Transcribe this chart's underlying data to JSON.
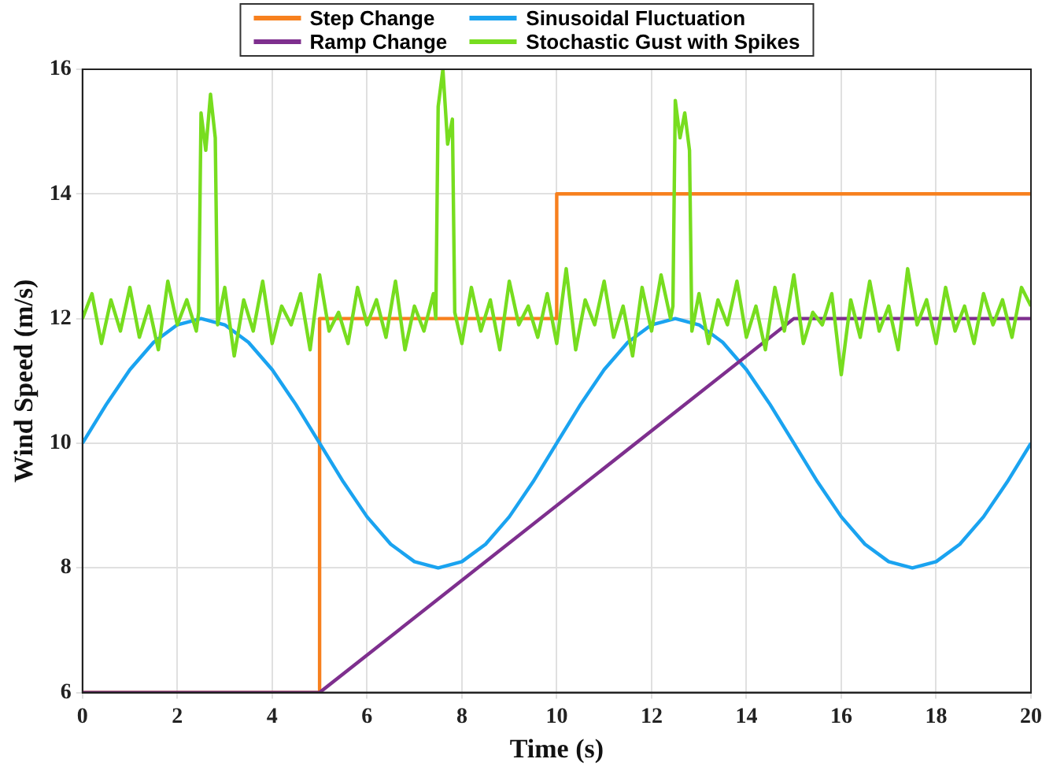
{
  "chart_data": {
    "type": "line",
    "xlabel": "Time (s)",
    "ylabel": "Wind Speed (m/s)",
    "xlim": [
      0,
      20
    ],
    "xticks": [
      0,
      2,
      4,
      6,
      8,
      10,
      12,
      14,
      16,
      18,
      20
    ],
    "ylim": [
      6,
      16
    ],
    "yticks": [
      6,
      8,
      10,
      12,
      14,
      16
    ],
    "grid": true,
    "legend": "top",
    "marker": "none",
    "line_style": "solid",
    "series": [
      {
        "name": "Step Change",
        "color": "#f7801e",
        "x": [
          0,
          5,
          5,
          10,
          10,
          20
        ],
        "values": [
          6,
          6,
          12,
          12,
          14,
          14
        ]
      },
      {
        "name": "Sinusoidal Fluctuation",
        "color": "#1aa3f0",
        "x": [
          0,
          0.5,
          1,
          1.5,
          2,
          2.5,
          3,
          3.5,
          4,
          4.5,
          5,
          5.5,
          6,
          6.5,
          7,
          7.5,
          8,
          8.5,
          9,
          9.5,
          10,
          10.5,
          11,
          11.5,
          12,
          12.5,
          13,
          13.5,
          14,
          14.5,
          15,
          15.5,
          16,
          16.5,
          17,
          17.5,
          18,
          18.5,
          19,
          19.5,
          20
        ],
        "values": [
          10,
          10.62,
          11.18,
          11.62,
          11.9,
          12,
          11.9,
          11.62,
          11.18,
          10.62,
          10,
          9.38,
          8.82,
          8.38,
          8.1,
          8,
          8.1,
          8.38,
          8.82,
          9.38,
          10,
          10.62,
          11.18,
          11.62,
          11.9,
          12,
          11.9,
          11.62,
          11.18,
          10.62,
          10,
          9.38,
          8.82,
          8.38,
          8.1,
          8,
          8.1,
          8.38,
          8.82,
          9.38,
          10
        ]
      },
      {
        "name": "Ramp Change",
        "color": "#7e2f8e",
        "x": [
          0,
          5,
          15,
          20
        ],
        "values": [
          6,
          6,
          12,
          12
        ]
      },
      {
        "name": "Stochastic Gust with Spikes",
        "color": "#77dd1f",
        "x": [
          0,
          0.2,
          0.4,
          0.6,
          0.8,
          1,
          1.2,
          1.4,
          1.6,
          1.8,
          2,
          2.2,
          2.4,
          2.45,
          2.5,
          2.6,
          2.7,
          2.8,
          2.85,
          3,
          3.2,
          3.4,
          3.6,
          3.8,
          4,
          4.2,
          4.4,
          4.6,
          4.8,
          5,
          5.2,
          5.4,
          5.6,
          5.8,
          6,
          6.2,
          6.4,
          6.6,
          6.8,
          7,
          7.2,
          7.4,
          7.45,
          7.5,
          7.6,
          7.7,
          7.8,
          7.85,
          8,
          8.2,
          8.4,
          8.6,
          8.8,
          9,
          9.2,
          9.4,
          9.6,
          9.8,
          10,
          10.2,
          10.4,
          10.6,
          10.8,
          11,
          11.2,
          11.4,
          11.6,
          11.8,
          12,
          12.2,
          12.4,
          12.45,
          12.5,
          12.6,
          12.7,
          12.8,
          12.85,
          13,
          13.2,
          13.4,
          13.6,
          13.8,
          14,
          14.2,
          14.4,
          14.6,
          14.8,
          15,
          15.2,
          15.4,
          15.6,
          15.8,
          16,
          16.2,
          16.4,
          16.6,
          16.8,
          17,
          17.2,
          17.4,
          17.6,
          17.8,
          18,
          18.2,
          18.4,
          18.6,
          18.8,
          19,
          19.2,
          19.4,
          19.6,
          19.8,
          20
        ],
        "values": [
          12.0,
          12.4,
          11.6,
          12.3,
          11.8,
          12.5,
          11.7,
          12.2,
          11.5,
          12.6,
          11.9,
          12.3,
          11.8,
          12.1,
          15.3,
          14.7,
          15.6,
          14.9,
          11.9,
          12.5,
          11.4,
          12.3,
          11.8,
          12.6,
          11.6,
          12.2,
          11.9,
          12.4,
          11.5,
          12.7,
          11.8,
          12.1,
          11.6,
          12.5,
          11.9,
          12.3,
          11.7,
          12.6,
          11.5,
          12.2,
          11.8,
          12.4,
          12.0,
          15.4,
          16.0,
          14.8,
          15.2,
          12.1,
          11.6,
          12.5,
          11.8,
          12.3,
          11.5,
          12.6,
          11.9,
          12.2,
          11.7,
          12.4,
          11.6,
          12.8,
          11.5,
          12.3,
          11.9,
          12.6,
          11.7,
          12.2,
          11.4,
          12.5,
          11.8,
          12.7,
          12.0,
          12.2,
          15.5,
          14.9,
          15.3,
          14.7,
          11.8,
          12.4,
          11.6,
          12.3,
          11.9,
          12.6,
          11.7,
          12.2,
          11.5,
          12.5,
          11.8,
          12.7,
          11.6,
          12.1,
          11.9,
          12.4,
          11.1,
          12.3,
          11.7,
          12.6,
          11.8,
          12.2,
          11.5,
          12.8,
          11.9,
          12.3,
          11.6,
          12.5,
          11.8,
          12.2,
          11.6,
          12.4,
          11.9,
          12.3,
          11.7,
          12.5,
          12.2
        ]
      }
    ]
  }
}
